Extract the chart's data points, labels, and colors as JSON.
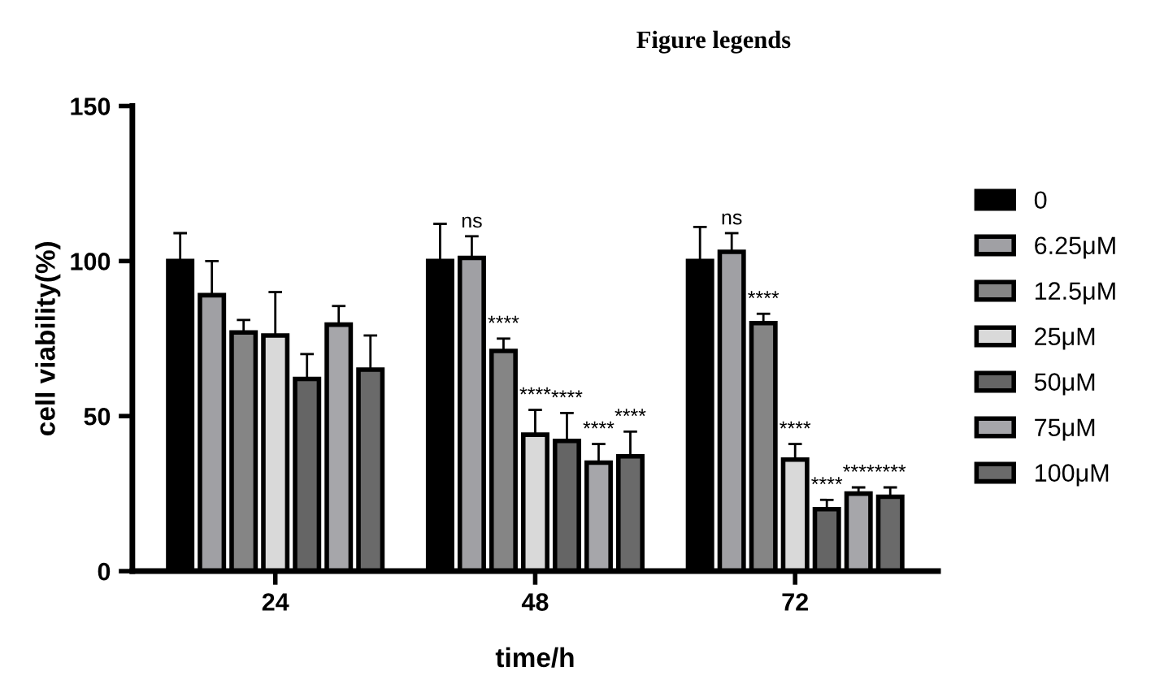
{
  "chart_data": {
    "type": "bar",
    "title": "Figure legends",
    "xlabel": "time/h",
    "ylabel": "cell viability(%)",
    "categories": [
      "24",
      "48",
      "72"
    ],
    "series": [
      {
        "name": "0",
        "color": "#000000",
        "values": [
          100,
          100,
          100
        ],
        "errors": [
          9,
          12,
          11
        ]
      },
      {
        "name": "6.25μM",
        "color": "#a0a0a4",
        "values": [
          89,
          101,
          103
        ],
        "errors": [
          11,
          7,
          6
        ]
      },
      {
        "name": "12.5μM",
        "color": "#858585",
        "values": [
          77,
          71,
          80
        ],
        "errors": [
          4,
          4,
          3
        ]
      },
      {
        "name": "25μM",
        "color": "#d9d9d9",
        "values": [
          76,
          44,
          36
        ],
        "errors": [
          14,
          8,
          5
        ]
      },
      {
        "name": "50μM",
        "color": "#656565",
        "values": [
          62,
          42,
          20
        ],
        "errors": [
          8,
          9,
          3
        ]
      },
      {
        "name": "75μM",
        "color": "#a6a6aa",
        "values": [
          79.5,
          35,
          25
        ],
        "errors": [
          6,
          6,
          2
        ]
      },
      {
        "name": "100μM",
        "color": "#6a6a6a",
        "values": [
          65,
          37,
          24
        ],
        "errors": [
          11,
          8,
          3
        ]
      }
    ],
    "annotations": [
      "ns",
      "****",
      "****",
      "****",
      "****",
      "****",
      "ns",
      "****",
      "****",
      "****",
      "****",
      "****"
    ],
    "ylim": [
      0,
      150
    ],
    "yticks": [
      0,
      50,
      100,
      150
    ],
    "grid": false,
    "legend": "right"
  }
}
